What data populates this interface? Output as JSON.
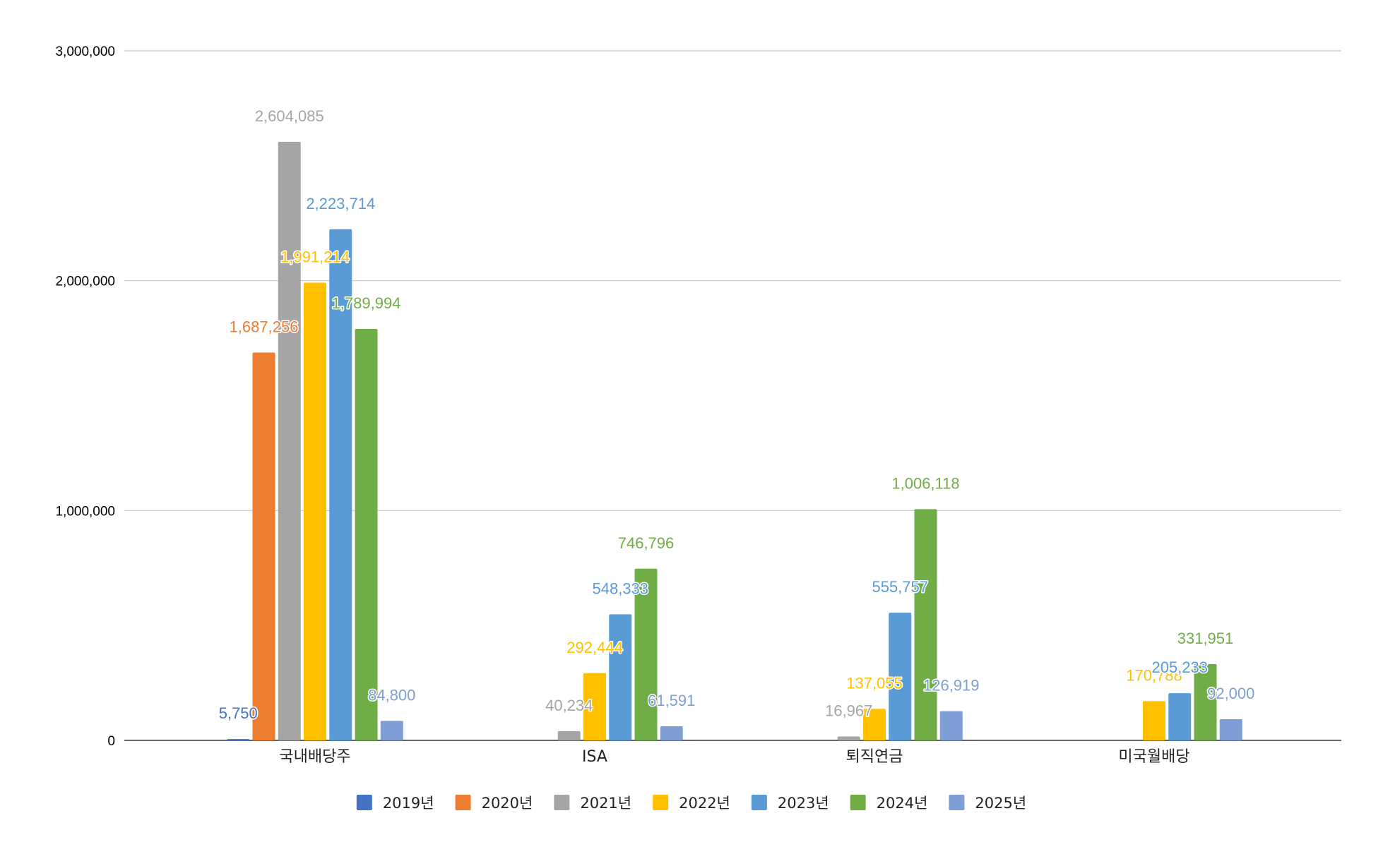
{
  "chart_data": {
    "type": "bar",
    "categories": [
      "국내배당주",
      "ISA",
      "퇴직연금",
      "미국월배당"
    ],
    "series": [
      {
        "name": "2019년",
        "color": "#4472C4",
        "values": [
          5750,
          null,
          null,
          null
        ],
        "labels": [
          "5,750",
          null,
          null,
          null
        ]
      },
      {
        "name": "2020년",
        "color": "#ED7D31",
        "values": [
          1687256,
          null,
          null,
          null
        ],
        "labels": [
          "1,687,256",
          null,
          null,
          null
        ]
      },
      {
        "name": "2021년",
        "color": "#A5A5A5",
        "values": [
          2604085,
          40234,
          16967,
          null
        ],
        "labels": [
          "2,604,085",
          "40,234",
          "16,967",
          null
        ]
      },
      {
        "name": "2022년",
        "color": "#FFC000",
        "values": [
          1991214,
          292444,
          137055,
          170788
        ],
        "labels": [
          "1,991,214",
          "292,444",
          "137,055",
          "170,788"
        ]
      },
      {
        "name": "2023년",
        "color": "#5B9BD5",
        "values": [
          2223714,
          548333,
          555757,
          205233
        ],
        "labels": [
          "2,223,714",
          "548,333",
          "555,757",
          "205,233"
        ]
      },
      {
        "name": "2024년",
        "color": "#70AD47",
        "values": [
          1789994,
          746796,
          1006118,
          331951
        ],
        "labels": [
          "1,789,994",
          "746,796",
          "1,006,118",
          "331,951"
        ]
      },
      {
        "name": "2025년",
        "color": "#7F9ED6",
        "values": [
          84800,
          61591,
          126919,
          92000
        ],
        "labels": [
          "84,800",
          "61,591",
          "126,919",
          "92,000"
        ]
      }
    ],
    "y_ticks": [
      0,
      1000000,
      2000000,
      3000000
    ],
    "y_tick_labels": [
      "0",
      "1,000,000",
      "2,000,000",
      "3,000,000"
    ],
    "ylim": [
      0,
      3000000
    ],
    "grid": true,
    "legend_position": "bottom"
  }
}
